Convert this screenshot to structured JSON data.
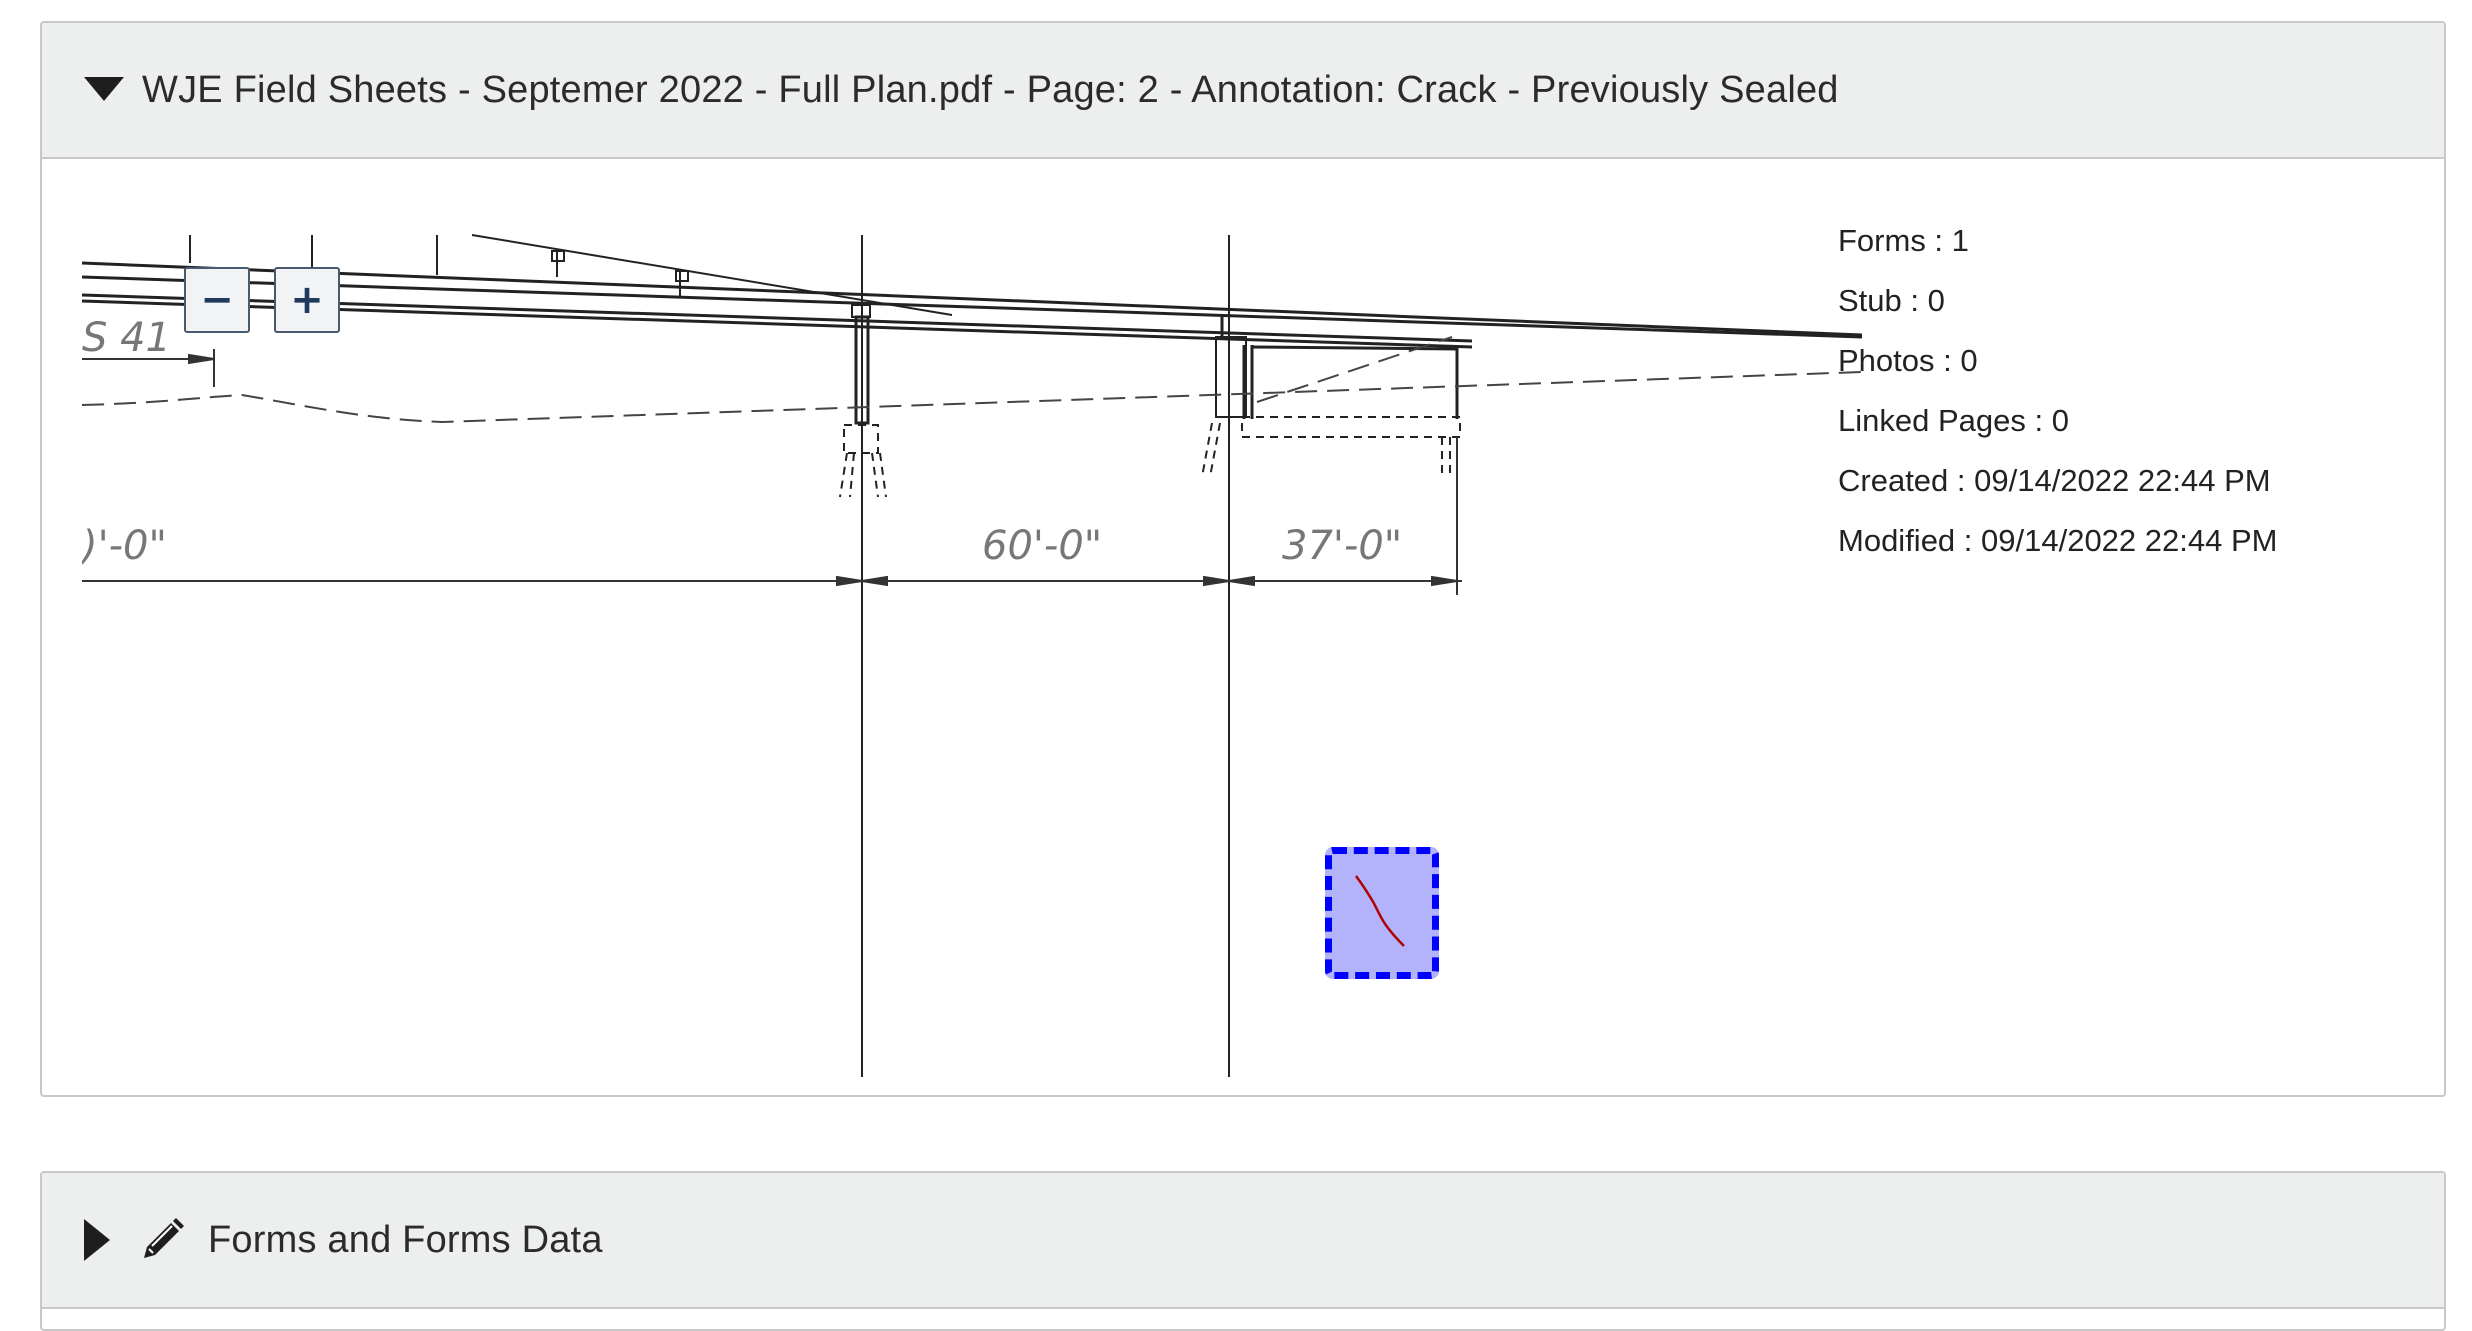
{
  "annotation_panel": {
    "title": "WJE Field Sheets - Septemer 2022 - Full Plan.pdf - Page: 2 - Annotation: Crack - Previously Sealed",
    "caret_icon": "caret-down-icon",
    "zoom": {
      "zoom_out_label": "−",
      "zoom_in_label": "+"
    },
    "drawing": {
      "label_left": "S 41",
      "dim_left": ")'-0\"",
      "dim_mid": "60'-0\"",
      "dim_right": "37'-0\""
    },
    "annotation": {
      "shape": "crack",
      "marker_color": "#0000ff",
      "fill_color": "#b3b3fb",
      "crack_color": "#b00000"
    },
    "meta": [
      "Forms : 1",
      "Stub : 0",
      "Photos : 0",
      "Linked Pages : 0",
      "Created : 09/14/2022 22:44 PM",
      "Modified : 09/14/2022 22:44 PM"
    ]
  },
  "forms_panel": {
    "title": "Forms and Forms Data",
    "caret_icon": "caret-right-icon",
    "edit_icon": "pencil-icon"
  }
}
